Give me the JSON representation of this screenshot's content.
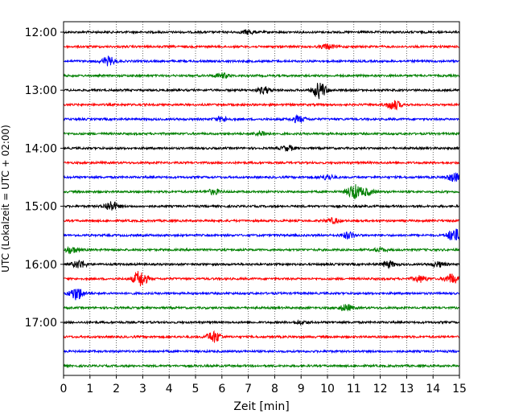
{
  "chart_data": {
    "type": "line",
    "title": "",
    "xlabel": "Zeit  [min]",
    "ylabel": "UTC (Lokalzeit = UTC + 02:00)",
    "xlim": [
      0,
      15
    ],
    "x_ticks": [
      "0",
      "1",
      "2",
      "3",
      "4",
      "5",
      "6",
      "7",
      "8",
      "9",
      "10",
      "11",
      "12",
      "13",
      "14",
      "15"
    ],
    "y_ticks": [
      "12:00",
      "13:00",
      "14:00",
      "15:00",
      "16:00",
      "17:00"
    ],
    "grid": "vertical dotted at each minute",
    "line_colors": [
      "#000000",
      "#ff0000",
      "#0000ff",
      "#008000"
    ],
    "series": [
      {
        "start": "12:00",
        "color": "#000000",
        "events": [
          [
            7.0,
            2.5
          ]
        ]
      },
      {
        "start": "12:15",
        "color": "#ff0000",
        "events": [
          [
            10.0,
            3.0
          ]
        ]
      },
      {
        "start": "12:30",
        "color": "#0000ff",
        "events": [
          [
            1.7,
            5.0
          ]
        ]
      },
      {
        "start": "12:45",
        "color": "#008000",
        "events": [
          [
            6.0,
            3.0
          ]
        ]
      },
      {
        "start": "13:00",
        "color": "#000000",
        "events": [
          [
            9.7,
            10.0
          ],
          [
            7.6,
            4.0
          ]
        ]
      },
      {
        "start": "13:15",
        "color": "#ff0000",
        "events": [
          [
            12.5,
            6.0
          ]
        ]
      },
      {
        "start": "13:30",
        "color": "#0000ff",
        "events": [
          [
            8.9,
            4.0
          ],
          [
            6.0,
            3.0
          ]
        ]
      },
      {
        "start": "13:45",
        "color": "#008000",
        "events": [
          [
            7.5,
            3.0
          ]
        ]
      },
      {
        "start": "14:00",
        "color": "#000000",
        "events": [
          [
            8.5,
            3.0
          ]
        ]
      },
      {
        "start": "14:15",
        "color": "#ff0000",
        "events": []
      },
      {
        "start": "14:30",
        "color": "#0000ff",
        "events": [
          [
            14.8,
            5.0
          ],
          [
            10.0,
            3.0
          ]
        ]
      },
      {
        "start": "14:45",
        "color": "#008000",
        "events": [
          [
            11.0,
            9.0
          ],
          [
            11.5,
            4.0
          ],
          [
            5.7,
            3.0
          ]
        ]
      },
      {
        "start": "15:00",
        "color": "#000000",
        "events": [
          [
            1.8,
            6.0
          ]
        ]
      },
      {
        "start": "15:15",
        "color": "#ff0000",
        "events": [
          [
            10.2,
            3.0
          ]
        ]
      },
      {
        "start": "15:30",
        "color": "#0000ff",
        "events": [
          [
            14.8,
            8.0
          ],
          [
            10.8,
            4.0
          ]
        ]
      },
      {
        "start": "15:45",
        "color": "#008000",
        "events": [
          [
            0.3,
            4.0
          ],
          [
            12.0,
            2.0
          ]
        ]
      },
      {
        "start": "16:00",
        "color": "#000000",
        "events": [
          [
            0.6,
            5.0
          ],
          [
            12.3,
            4.0
          ],
          [
            14.2,
            3.0
          ]
        ]
      },
      {
        "start": "16:15",
        "color": "#ff0000",
        "events": [
          [
            2.9,
            10.0
          ],
          [
            14.7,
            6.0
          ],
          [
            13.5,
            4.0
          ]
        ]
      },
      {
        "start": "16:30",
        "color": "#0000ff",
        "events": [
          [
            0.5,
            8.0
          ]
        ]
      },
      {
        "start": "16:45",
        "color": "#008000",
        "events": [
          [
            10.7,
            4.0
          ]
        ]
      },
      {
        "start": "17:00",
        "color": "#000000",
        "events": [
          [
            9.0,
            2.0
          ]
        ]
      },
      {
        "start": "17:15",
        "color": "#ff0000",
        "events": [
          [
            5.7,
            7.0
          ]
        ]
      },
      {
        "start": "17:30",
        "color": "#0000ff",
        "events": []
      },
      {
        "start": "17:45",
        "color": "#008000",
        "events": []
      }
    ]
  }
}
